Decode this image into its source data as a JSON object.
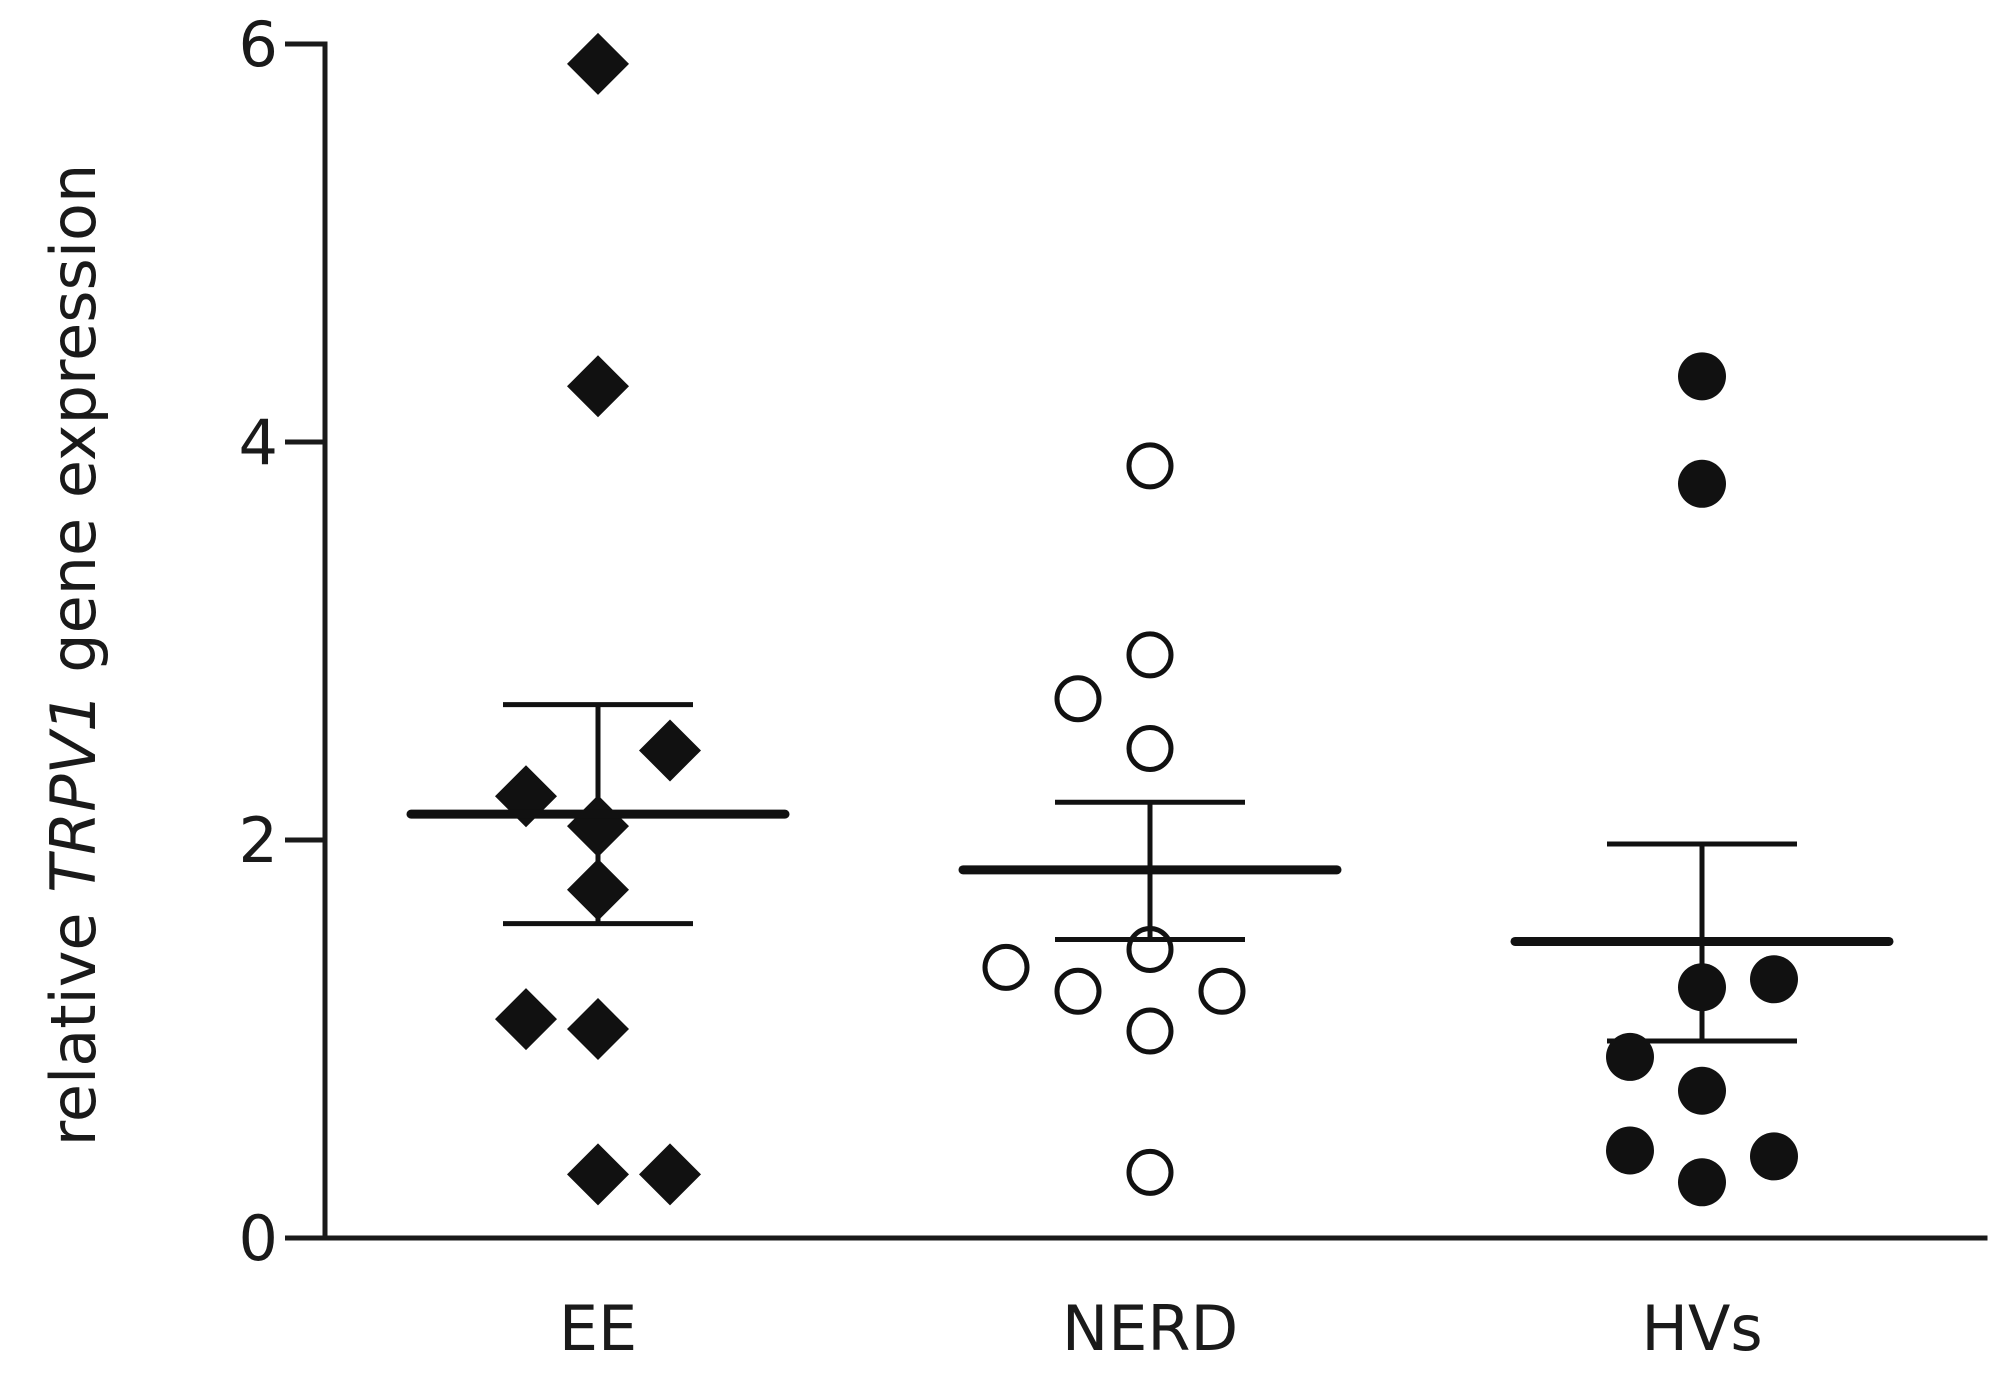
{
  "chart_data": {
    "type": "scatter",
    "ylabel_parts": [
      "relative ",
      "TRPV1",
      " gene expression"
    ],
    "ylim": [
      0,
      6
    ],
    "yticks": [
      "0",
      "2",
      "4",
      "6"
    ],
    "grid": false,
    "categories": [
      "EE",
      "NERD",
      "HVs"
    ],
    "groups": [
      {
        "category": "EE",
        "marker": "diamond",
        "points": [
          {
            "offset": 0,
            "y": 5.9
          },
          {
            "offset": 0,
            "y": 4.28
          },
          {
            "offset": 1,
            "y": 2.45
          },
          {
            "offset": -1,
            "y": 2.22
          },
          {
            "offset": 0,
            "y": 2.07
          },
          {
            "offset": 0,
            "y": 1.75
          },
          {
            "offset": -1,
            "y": 1.1
          },
          {
            "offset": 0,
            "y": 1.05
          },
          {
            "offset": 0,
            "y": 0.32
          },
          {
            "offset": 1,
            "y": 0.32
          }
        ],
        "mean": 2.13,
        "sem": [
          1.58,
          2.68
        ]
      },
      {
        "category": "NERD",
        "marker": "open-circle",
        "points": [
          {
            "offset": 0,
            "y": 3.88
          },
          {
            "offset": 0,
            "y": 2.93
          },
          {
            "offset": -1,
            "y": 2.71
          },
          {
            "offset": 0,
            "y": 2.46
          },
          {
            "offset": 0,
            "y": 1.45
          },
          {
            "offset": -2,
            "y": 1.36
          },
          {
            "offset": -1,
            "y": 1.24
          },
          {
            "offset": 1,
            "y": 1.24
          },
          {
            "offset": 0,
            "y": 1.04
          },
          {
            "offset": 0,
            "y": 0.33
          }
        ],
        "mean": 1.85,
        "sem": [
          1.5,
          2.19
        ]
      },
      {
        "category": "HVs",
        "marker": "filled-circle",
        "points": [
          {
            "offset": 0,
            "y": 4.33
          },
          {
            "offset": 0,
            "y": 3.79
          },
          {
            "offset": 1,
            "y": 1.3
          },
          {
            "offset": 0,
            "y": 1.26
          },
          {
            "offset": -1,
            "y": 0.91
          },
          {
            "offset": 0,
            "y": 0.74
          },
          {
            "offset": -1,
            "y": 0.44
          },
          {
            "offset": 1,
            "y": 0.41
          },
          {
            "offset": 0,
            "y": 0.28
          }
        ],
        "mean": 1.49,
        "sem": [
          0.99,
          1.98
        ]
      }
    ]
  }
}
